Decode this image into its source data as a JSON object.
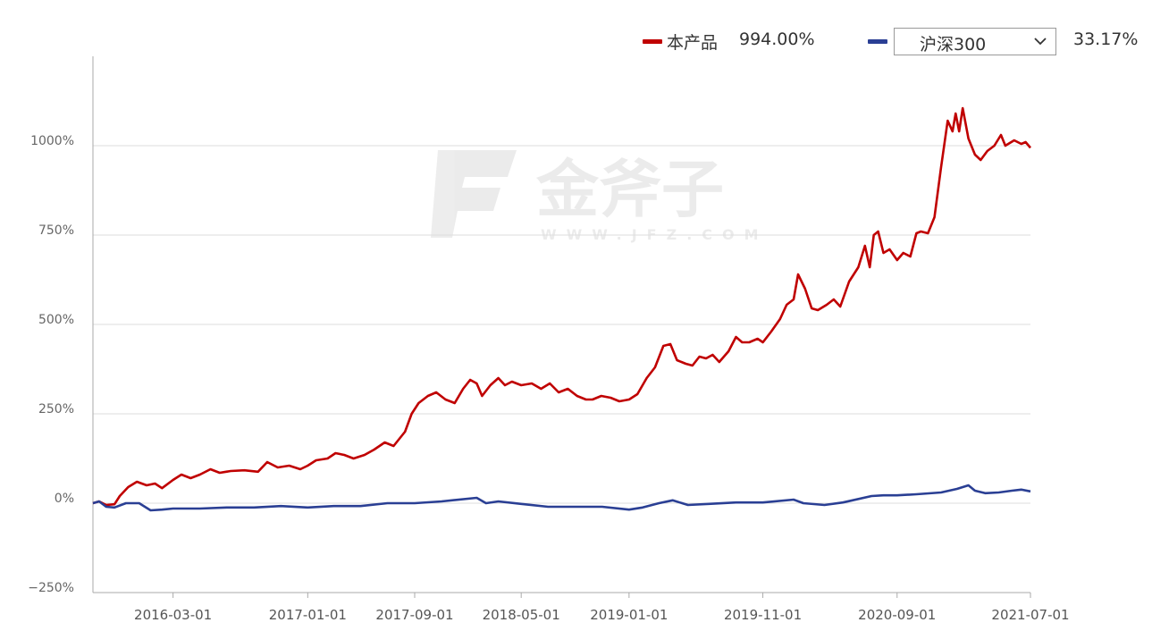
{
  "legend": {
    "product_label": "本产品",
    "product_value": "994.00%",
    "benchmark_value": "33.17%"
  },
  "benchmark_select": {
    "selected": "沪深300"
  },
  "watermark": {
    "text": "金斧子",
    "url": "WWW.JFZ.COM"
  },
  "colors": {
    "product": "#c00000",
    "benchmark": "#2a3f94",
    "grid": "#dddddd",
    "axis": "#aaaaaa"
  },
  "chart_data": {
    "type": "line",
    "xlabel": "",
    "ylabel": "",
    "x_ticks": [
      "2016-03-01",
      "2017-01-01",
      "2017-09-01",
      "2018-05-01",
      "2019-01-01",
      "2019-11-01",
      "2020-09-01",
      "2021-07-01"
    ],
    "y_ticks": [
      "1000%",
      "750%",
      "500%",
      "250%",
      "0%",
      "−250%"
    ],
    "ylim": [
      -250,
      1250
    ],
    "xlim": [
      "2015-09-01",
      "2021-07-01"
    ],
    "grid": true,
    "legend_position": "top-right",
    "series": [
      {
        "name": "本产品",
        "color": "#c00000",
        "points": [
          [
            "2015-09-01",
            0
          ],
          [
            "2015-09-15",
            5
          ],
          [
            "2015-10-01",
            -5
          ],
          [
            "2015-10-20",
            -3
          ],
          [
            "2015-11-01",
            20
          ],
          [
            "2015-11-20",
            45
          ],
          [
            "2015-12-10",
            60
          ],
          [
            "2016-01-01",
            50
          ],
          [
            "2016-01-20",
            55
          ],
          [
            "2016-02-05",
            42
          ],
          [
            "2016-03-01",
            65
          ],
          [
            "2016-03-20",
            80
          ],
          [
            "2016-04-10",
            70
          ],
          [
            "2016-05-01",
            80
          ],
          [
            "2016-05-25",
            95
          ],
          [
            "2016-06-15",
            85
          ],
          [
            "2016-07-10",
            90
          ],
          [
            "2016-08-10",
            92
          ],
          [
            "2016-09-10",
            88
          ],
          [
            "2016-10-01",
            115
          ],
          [
            "2016-10-25",
            100
          ],
          [
            "2016-11-20",
            105
          ],
          [
            "2016-12-15",
            95
          ],
          [
            "2017-01-01",
            105
          ],
          [
            "2017-01-20",
            120
          ],
          [
            "2017-02-15",
            125
          ],
          [
            "2017-03-05",
            140
          ],
          [
            "2017-03-25",
            135
          ],
          [
            "2017-04-15",
            125
          ],
          [
            "2017-05-10",
            135
          ],
          [
            "2017-06-01",
            150
          ],
          [
            "2017-06-25",
            170
          ],
          [
            "2017-07-15",
            160
          ],
          [
            "2017-08-10",
            200
          ],
          [
            "2017-08-25",
            250
          ],
          [
            "2017-09-10",
            280
          ],
          [
            "2017-10-01",
            300
          ],
          [
            "2017-10-20",
            310
          ],
          [
            "2017-11-10",
            290
          ],
          [
            "2017-12-01",
            280
          ],
          [
            "2017-12-20",
            320
          ],
          [
            "2018-01-05",
            345
          ],
          [
            "2018-01-20",
            335
          ],
          [
            "2018-02-01",
            300
          ],
          [
            "2018-02-20",
            330
          ],
          [
            "2018-03-10",
            350
          ],
          [
            "2018-03-25",
            330
          ],
          [
            "2018-04-10",
            340
          ],
          [
            "2018-05-01",
            330
          ],
          [
            "2018-05-25",
            335
          ],
          [
            "2018-06-15",
            320
          ],
          [
            "2018-07-05",
            335
          ],
          [
            "2018-07-25",
            310
          ],
          [
            "2018-08-15",
            320
          ],
          [
            "2018-09-05",
            300
          ],
          [
            "2018-09-25",
            290
          ],
          [
            "2018-10-10",
            290
          ],
          [
            "2018-10-30",
            300
          ],
          [
            "2018-11-20",
            295
          ],
          [
            "2018-12-10",
            285
          ],
          [
            "2019-01-01",
            290
          ],
          [
            "2019-01-20",
            305
          ],
          [
            "2019-02-10",
            350
          ],
          [
            "2019-03-01",
            380
          ],
          [
            "2019-03-20",
            440
          ],
          [
            "2019-04-05",
            445
          ],
          [
            "2019-04-20",
            400
          ],
          [
            "2019-05-10",
            390
          ],
          [
            "2019-05-25",
            385
          ],
          [
            "2019-06-10",
            410
          ],
          [
            "2019-06-25",
            405
          ],
          [
            "2019-07-10",
            415
          ],
          [
            "2019-07-25",
            395
          ],
          [
            "2019-08-15",
            425
          ],
          [
            "2019-09-01",
            465
          ],
          [
            "2019-09-15",
            450
          ],
          [
            "2019-10-01",
            450
          ],
          [
            "2019-10-20",
            460
          ],
          [
            "2019-11-01",
            450
          ],
          [
            "2019-11-20",
            480
          ],
          [
            "2019-12-10",
            515
          ],
          [
            "2019-12-25",
            555
          ],
          [
            "2020-01-10",
            570
          ],
          [
            "2020-01-20",
            640
          ],
          [
            "2020-02-05",
            600
          ],
          [
            "2020-02-20",
            545
          ],
          [
            "2020-03-05",
            540
          ],
          [
            "2020-03-25",
            555
          ],
          [
            "2020-04-10",
            570
          ],
          [
            "2020-04-25",
            550
          ],
          [
            "2020-05-15",
            620
          ],
          [
            "2020-06-05",
            660
          ],
          [
            "2020-06-20",
            720
          ],
          [
            "2020-07-01",
            660
          ],
          [
            "2020-07-10",
            750
          ],
          [
            "2020-07-20",
            760
          ],
          [
            "2020-08-01",
            700
          ],
          [
            "2020-08-15",
            710
          ],
          [
            "2020-09-01",
            680
          ],
          [
            "2020-09-15",
            700
          ],
          [
            "2020-10-01",
            690
          ],
          [
            "2020-10-15",
            755
          ],
          [
            "2020-10-25",
            760
          ],
          [
            "2020-11-10",
            755
          ],
          [
            "2020-11-25",
            800
          ],
          [
            "2020-12-10",
            940
          ],
          [
            "2020-12-25",
            1070
          ],
          [
            "2021-01-05",
            1040
          ],
          [
            "2021-01-12",
            1090
          ],
          [
            "2021-01-20",
            1040
          ],
          [
            "2021-01-28",
            1105
          ],
          [
            "2021-02-10",
            1020
          ],
          [
            "2021-02-25",
            975
          ],
          [
            "2021-03-10",
            960
          ],
          [
            "2021-03-25",
            985
          ],
          [
            "2021-04-10",
            1000
          ],
          [
            "2021-04-25",
            1030
          ],
          [
            "2021-05-05",
            1000
          ],
          [
            "2021-05-25",
            1015
          ],
          [
            "2021-06-10",
            1005
          ],
          [
            "2021-06-20",
            1010
          ],
          [
            "2021-07-01",
            994
          ]
        ]
      },
      {
        "name": "沪深300",
        "color": "#2a3f94",
        "points": [
          [
            "2015-09-01",
            0
          ],
          [
            "2015-09-15",
            5
          ],
          [
            "2015-10-01",
            -10
          ],
          [
            "2015-10-20",
            -12
          ],
          [
            "2015-11-15",
            0
          ],
          [
            "2015-12-15",
            0
          ],
          [
            "2016-01-10",
            -20
          ],
          [
            "2016-02-05",
            -18
          ],
          [
            "2016-03-01",
            -15
          ],
          [
            "2016-05-01",
            -15
          ],
          [
            "2016-07-01",
            -12
          ],
          [
            "2016-09-01",
            -12
          ],
          [
            "2016-11-01",
            -8
          ],
          [
            "2017-01-01",
            -12
          ],
          [
            "2017-03-01",
            -8
          ],
          [
            "2017-05-01",
            -8
          ],
          [
            "2017-07-01",
            0
          ],
          [
            "2017-09-01",
            0
          ],
          [
            "2017-11-01",
            5
          ],
          [
            "2018-01-20",
            15
          ],
          [
            "2018-02-10",
            0
          ],
          [
            "2018-03-10",
            5
          ],
          [
            "2018-05-01",
            -2
          ],
          [
            "2018-07-01",
            -10
          ],
          [
            "2018-09-01",
            -10
          ],
          [
            "2018-11-01",
            -10
          ],
          [
            "2019-01-01",
            -18
          ],
          [
            "2019-02-01",
            -12
          ],
          [
            "2019-03-10",
            0
          ],
          [
            "2019-04-10",
            8
          ],
          [
            "2019-05-15",
            -5
          ],
          [
            "2019-07-01",
            -2
          ],
          [
            "2019-09-01",
            2
          ],
          [
            "2019-11-01",
            2
          ],
          [
            "2020-01-10",
            10
          ],
          [
            "2020-02-01",
            0
          ],
          [
            "2020-03-20",
            -5
          ],
          [
            "2020-05-01",
            2
          ],
          [
            "2020-07-05",
            20
          ],
          [
            "2020-08-01",
            22
          ],
          [
            "2020-09-01",
            22
          ],
          [
            "2020-10-15",
            25
          ],
          [
            "2020-12-10",
            30
          ],
          [
            "2021-01-15",
            40
          ],
          [
            "2021-02-10",
            50
          ],
          [
            "2021-02-25",
            35
          ],
          [
            "2021-03-20",
            28
          ],
          [
            "2021-04-20",
            30
          ],
          [
            "2021-05-20",
            35
          ],
          [
            "2021-06-10",
            38
          ],
          [
            "2021-07-01",
            33
          ]
        ]
      }
    ]
  }
}
